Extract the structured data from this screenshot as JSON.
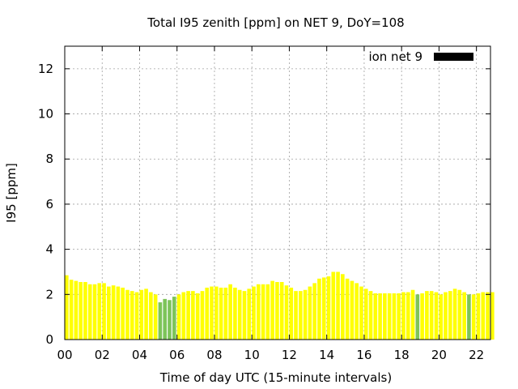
{
  "chart_data": {
    "type": "bar",
    "title": "Total I95 zenith [ppm] on NET 9, DoY=108",
    "xlabel": "Time of day UTC (15-minute intervals)",
    "ylabel": "I95 [ppm]",
    "xlim": [
      0,
      22.75
    ],
    "ylim": [
      0,
      13
    ],
    "bar_interval_hours": 0.25,
    "grid": true,
    "legend_position": "top-right",
    "x_ticks": [
      {
        "value": 0,
        "label": "00"
      },
      {
        "value": 2,
        "label": "02"
      },
      {
        "value": 4,
        "label": "04"
      },
      {
        "value": 6,
        "label": "06"
      },
      {
        "value": 8,
        "label": "08"
      },
      {
        "value": 10,
        "label": "10"
      },
      {
        "value": 12,
        "label": "12"
      },
      {
        "value": 14,
        "label": "14"
      },
      {
        "value": 16,
        "label": "16"
      },
      {
        "value": 18,
        "label": "18"
      },
      {
        "value": 20,
        "label": "20"
      },
      {
        "value": 22,
        "label": "22"
      }
    ],
    "y_ticks": [
      {
        "value": 0,
        "label": "0"
      },
      {
        "value": 2,
        "label": "2"
      },
      {
        "value": 4,
        "label": "4"
      },
      {
        "value": 6,
        "label": "6"
      },
      {
        "value": 8,
        "label": "8"
      },
      {
        "value": 10,
        "label": "10"
      },
      {
        "value": 12,
        "label": "12"
      }
    ],
    "series": [
      {
        "name": "ion net 9",
        "legend_color": "#000000",
        "values": [
          2.85,
          2.65,
          2.6,
          2.55,
          2.55,
          2.45,
          2.45,
          2.5,
          2.5,
          2.35,
          2.4,
          2.35,
          2.3,
          2.2,
          2.15,
          2.1,
          2.2,
          2.25,
          2.1,
          2.0,
          1.65,
          1.8,
          1.75,
          1.9,
          2.0,
          2.1,
          2.15,
          2.15,
          2.05,
          2.15,
          2.3,
          2.35,
          2.35,
          2.3,
          2.3,
          2.45,
          2.3,
          2.2,
          2.15,
          2.25,
          2.35,
          2.45,
          2.45,
          2.45,
          2.6,
          2.55,
          2.55,
          2.4,
          2.3,
          2.15,
          2.15,
          2.2,
          2.35,
          2.5,
          2.7,
          2.75,
          2.8,
          3.0,
          3.0,
          2.9,
          2.7,
          2.6,
          2.5,
          2.35,
          2.25,
          2.15,
          2.05,
          2.05,
          2.05,
          2.05,
          2.05,
          2.05,
          2.1,
          2.1,
          2.2,
          2.0,
          2.05,
          2.15,
          2.15,
          2.1,
          2.0,
          2.1,
          2.15,
          2.25,
          2.2,
          2.1,
          2.0,
          2.0,
          2.05,
          2.1,
          2.1,
          2.1
        ],
        "highlight_indices": [
          20,
          21,
          22,
          23,
          75,
          86
        ]
      }
    ],
    "colors": {
      "bar": "#ffff00",
      "bar_highlight": "#7dc45a",
      "grid": "#a0a0a0",
      "legend_swatch": "#000000"
    }
  }
}
